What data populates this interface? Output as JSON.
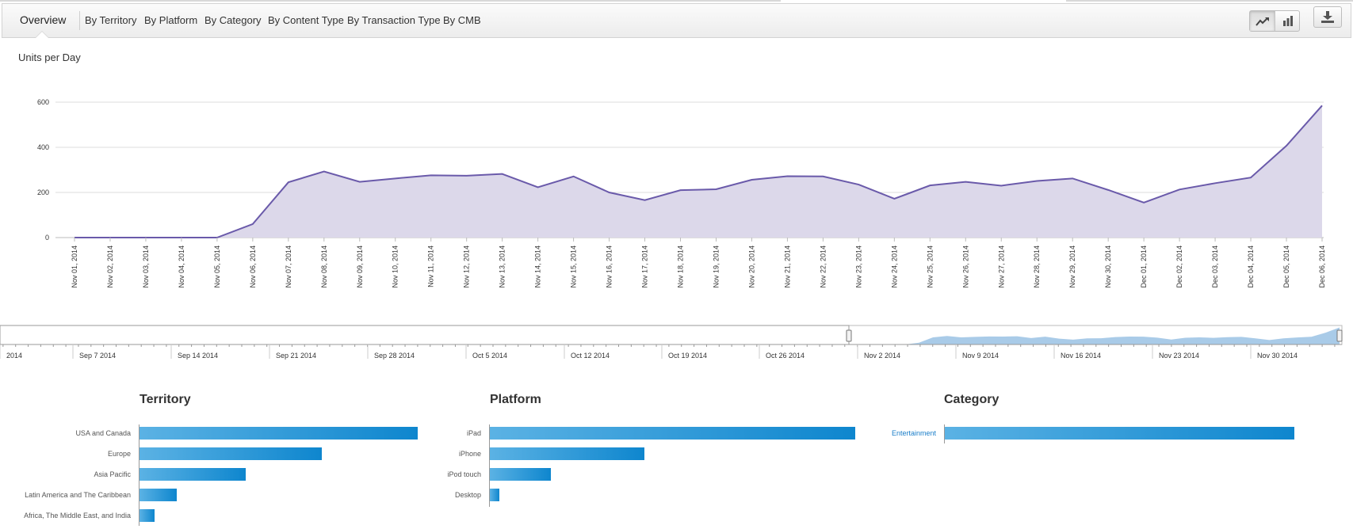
{
  "tabs": [
    {
      "label": "Overview",
      "active": true
    },
    {
      "label": "By Territory"
    },
    {
      "label": "By Platform"
    },
    {
      "label": "By Category"
    },
    {
      "label": "By Content Type"
    },
    {
      "label": "By Transaction Type"
    },
    {
      "label": "By CMB"
    }
  ],
  "toolbar": {
    "line_chart_icon": "line-chart-icon",
    "bar_chart_icon": "bar-chart-icon",
    "download_icon": "download-icon"
  },
  "colors": {
    "line": "#6a5aaa",
    "area": "#dcd8ea",
    "bar": "#0e86ce",
    "navigator": "#a9cbe8"
  },
  "chart_data": [
    {
      "type": "area",
      "title": "Units per Day",
      "x": [
        "Nov 01, 2014",
        "Nov 02, 2014",
        "Nov 03, 2014",
        "Nov 04, 2014",
        "Nov 05, 2014",
        "Nov 06, 2014",
        "Nov 07, 2014",
        "Nov 08, 2014",
        "Nov 09, 2014",
        "Nov 10, 2014",
        "Nov 11, 2014",
        "Nov 12, 2014",
        "Nov 13, 2014",
        "Nov 14, 2014",
        "Nov 15, 2014",
        "Nov 16, 2014",
        "Nov 17, 2014",
        "Nov 18, 2014",
        "Nov 19, 2014",
        "Nov 20, 2014",
        "Nov 21, 2014",
        "Nov 22, 2014",
        "Nov 23, 2014",
        "Nov 24, 2014",
        "Nov 25, 2014",
        "Nov 26, 2014",
        "Nov 27, 2014",
        "Nov 28, 2014",
        "Nov 29, 2014",
        "Nov 30, 2014",
        "Dec 01, 2014",
        "Dec 02, 2014",
        "Dec 03, 2014",
        "Dec 04, 2014",
        "Dec 05, 2014",
        "Dec 06, 2014"
      ],
      "values": [
        0,
        0,
        0,
        0,
        0,
        60,
        245,
        293,
        247,
        262,
        276,
        274,
        282,
        223,
        271,
        200,
        166,
        210,
        214,
        256,
        272,
        271,
        235,
        172,
        231,
        247,
        230,
        251,
        262,
        211,
        155,
        213,
        241,
        266,
        407,
        585
      ],
      "yticks": [
        0,
        200,
        400,
        600
      ],
      "ylim": [
        0,
        640
      ],
      "grid": true
    },
    {
      "type": "area",
      "role": "navigator",
      "tick_labels": [
        "2014",
        "Sep 7 2014",
        "Sep 14 2014",
        "Sep 21 2014",
        "Sep 28 2014",
        "Oct 5 2014",
        "Oct 12 2014",
        "Oct 19 2014",
        "Oct 26 2014",
        "Nov 2 2014",
        "Nov 9 2014",
        "Nov 16 2014",
        "Nov 23 2014",
        "Nov 30 2014"
      ]
    },
    {
      "type": "bar",
      "title": "Territory",
      "categories": [
        "USA and Canada",
        "Europe",
        "Asia Pacific",
        "Latin America and The Caribbean",
        "Africa, The Middle East, and India"
      ],
      "values": [
        1000,
        655,
        383,
        135,
        55
      ]
    },
    {
      "type": "bar",
      "title": "Platform",
      "categories": [
        "iPad",
        "iPhone",
        "iPod touch",
        "Desktop"
      ],
      "values": [
        1000,
        423,
        167,
        26
      ]
    },
    {
      "type": "bar",
      "title": "Category",
      "categories": [
        "Entertainment"
      ],
      "values": [
        1000
      ]
    }
  ]
}
